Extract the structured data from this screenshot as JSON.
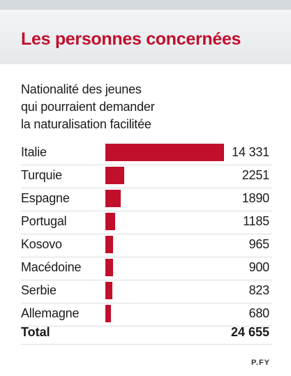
{
  "header": {
    "title": "Les personnes concernées"
  },
  "subtitle_lines": [
    "Nationalité des jeunes",
    "qui pourraient demander",
    "la naturalisation facilitée"
  ],
  "colors": {
    "accent": "#c1102c",
    "header_bg": "#e9ecef",
    "text": "#1a1a1a"
  },
  "chart_data": {
    "type": "bar",
    "orientation": "horizontal",
    "categories": [
      "Italie",
      "Turquie",
      "Espagne",
      "Portugal",
      "Kosovo",
      "Macédoine",
      "Serbie",
      "Allemagne"
    ],
    "values": [
      14331,
      2251,
      1890,
      1185,
      965,
      900,
      823,
      680
    ],
    "value_labels": [
      "14 331",
      "2251",
      "1890",
      "1185",
      "965",
      "900",
      "823",
      "680"
    ]
  },
  "total": {
    "label": "Total",
    "value": "24 655"
  },
  "credit": "P.FY"
}
